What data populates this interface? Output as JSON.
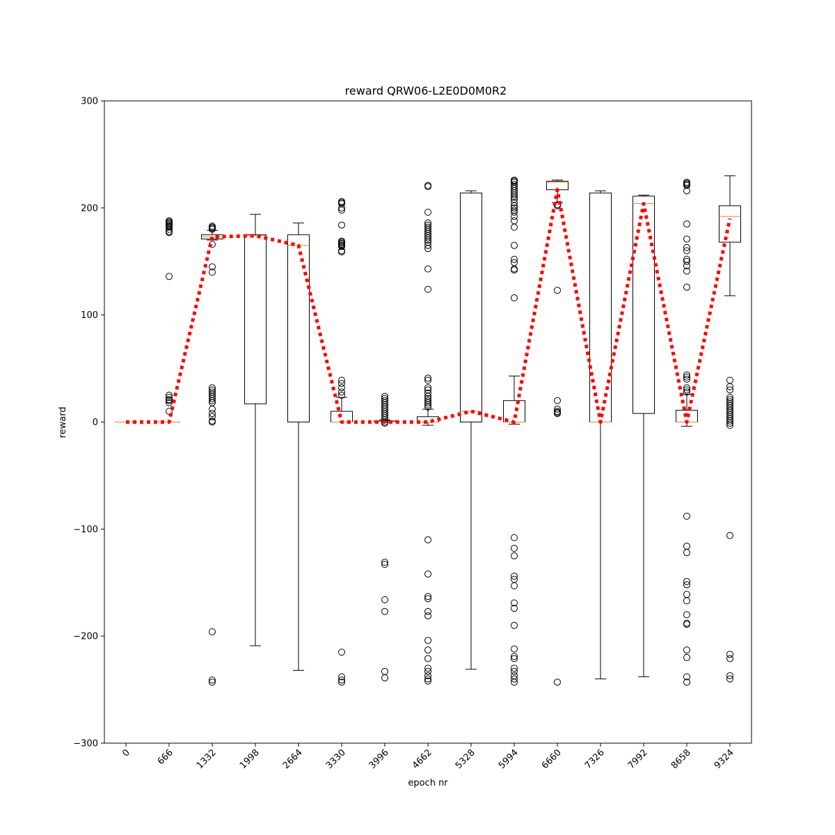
{
  "chart_data": {
    "type": "box",
    "title": "reward QRW06-L2E0D0M0R2",
    "xlabel": "epoch nr",
    "ylabel": "reward",
    "ylim": [
      -300,
      300
    ],
    "yticks": [
      -300,
      -200,
      -100,
      0,
      100,
      200,
      300
    ],
    "grid": false,
    "colors": {
      "box": "#000000",
      "median": "#ff7f0e",
      "mean_line": "#ff0000"
    },
    "categories": [
      "0",
      "666",
      "1332",
      "1998",
      "2664",
      "3330",
      "3996",
      "4662",
      "5328",
      "5994",
      "6660",
      "7326",
      "7992",
      "8658",
      "9324"
    ],
    "boxes": [
      {
        "q1": 0,
        "median": 0,
        "q3": 0,
        "whislo": 0,
        "whishi": 0,
        "fliers": []
      },
      {
        "q1": 0,
        "median": 0,
        "q3": 0,
        "whislo": 0,
        "whishi": 0,
        "fliers": [
          188,
          187,
          186,
          185,
          184,
          183,
          182,
          180,
          178,
          177,
          136,
          25,
          23,
          21,
          20,
          18,
          10
        ]
      },
      {
        "q1": 171,
        "median": 173,
        "q3": 175,
        "whislo": 170,
        "whishi": 179,
        "fliers": [
          183,
          182,
          181,
          180,
          166,
          145,
          140,
          32,
          30,
          28,
          26,
          24,
          22,
          20,
          18,
          12,
          8,
          5,
          1,
          0,
          -196,
          -241,
          -243
        ]
      },
      {
        "q1": 17,
        "median": 174,
        "q3": 175,
        "whislo": -209,
        "whishi": 194,
        "fliers": []
      },
      {
        "q1": 0,
        "median": 165,
        "q3": 175,
        "whislo": -232,
        "whishi": 186,
        "fliers": []
      },
      {
        "q1": 0,
        "median": 0,
        "q3": 10,
        "whislo": 0,
        "whishi": 23,
        "fliers": [
          206,
          205,
          204,
          200,
          198,
          184,
          169,
          168,
          167,
          166,
          165,
          164,
          160,
          159,
          39,
          36,
          32,
          28,
          25,
          -215,
          -238,
          -241,
          -243
        ]
      },
      {
        "q1": 0,
        "median": 0,
        "q3": 1,
        "whislo": 0,
        "whishi": 2,
        "fliers": [
          24,
          22,
          20,
          18,
          16,
          14,
          12,
          10,
          8,
          6,
          4,
          2,
          0,
          -1,
          -131,
          -133,
          -166,
          -177,
          -233,
          -239
        ]
      },
      {
        "q1": 0,
        "median": 0,
        "q3": 5,
        "whislo": -3,
        "whishi": 12,
        "fliers": [
          221,
          220,
          196,
          186,
          184,
          182,
          180,
          178,
          176,
          174,
          172,
          170,
          168,
          165,
          162,
          143,
          124,
          41,
          39,
          32,
          30,
          27,
          24,
          22,
          20,
          18,
          16,
          14,
          -110,
          -142,
          -163,
          -165,
          -177,
          -181,
          -204,
          -213,
          -221,
          -230,
          -233,
          -237,
          -240,
          -242
        ]
      },
      {
        "q1": 0,
        "median": 10,
        "q3": 214,
        "whislo": -231,
        "whishi": 216,
        "fliers": []
      },
      {
        "q1": 0,
        "median": 0,
        "q3": 20,
        "whislo": -2,
        "whishi": 43,
        "fliers": [
          226,
          225,
          224,
          222,
          220,
          218,
          216,
          214,
          212,
          210,
          208,
          205,
          202,
          200,
          198,
          196,
          192,
          188,
          182,
          165,
          152,
          149,
          143,
          142,
          116,
          -108,
          -118,
          -125,
          -144,
          -147,
          -153,
          -169,
          -174,
          -190,
          -212,
          -219,
          -221,
          -230,
          -233,
          -237,
          -240,
          -243
        ]
      },
      {
        "q1": 217,
        "median": 224,
        "q3": 225,
        "whislo": 205,
        "whishi": 226,
        "fliers": [
          203,
          202,
          123,
          20,
          12,
          10,
          9,
          8,
          -243
        ]
      },
      {
        "q1": 0,
        "median": 0,
        "q3": 214,
        "whislo": -240,
        "whishi": 216,
        "fliers": []
      },
      {
        "q1": 8,
        "median": 204,
        "q3": 211,
        "whislo": -238,
        "whishi": 212,
        "fliers": []
      },
      {
        "q1": 0,
        "median": 0,
        "q3": 11,
        "whislo": -4,
        "whishi": 26,
        "fliers": [
          224,
          223,
          222,
          221,
          216,
          185,
          171,
          163,
          160,
          152,
          150,
          146,
          141,
          126,
          44,
          42,
          40,
          32,
          30,
          28,
          -88,
          -116,
          -122,
          -149,
          -152,
          -161,
          -167,
          -180,
          -188,
          -189,
          -213,
          -220,
          -238,
          -243
        ]
      },
      {
        "q1": 168,
        "median": 192,
        "q3": 202,
        "whislo": 118,
        "whishi": 230,
        "fliers": [
          39,
          33,
          30,
          23,
          21,
          19,
          17,
          15,
          13,
          11,
          9,
          7,
          5,
          3,
          1,
          -1,
          -3,
          -106,
          -217,
          -221,
          -237,
          -240
        ]
      }
    ],
    "mean_line": [
      0,
      0,
      173,
      174,
      165,
      0,
      0,
      0,
      10,
      0,
      217,
      0,
      204,
      0,
      190
    ]
  }
}
